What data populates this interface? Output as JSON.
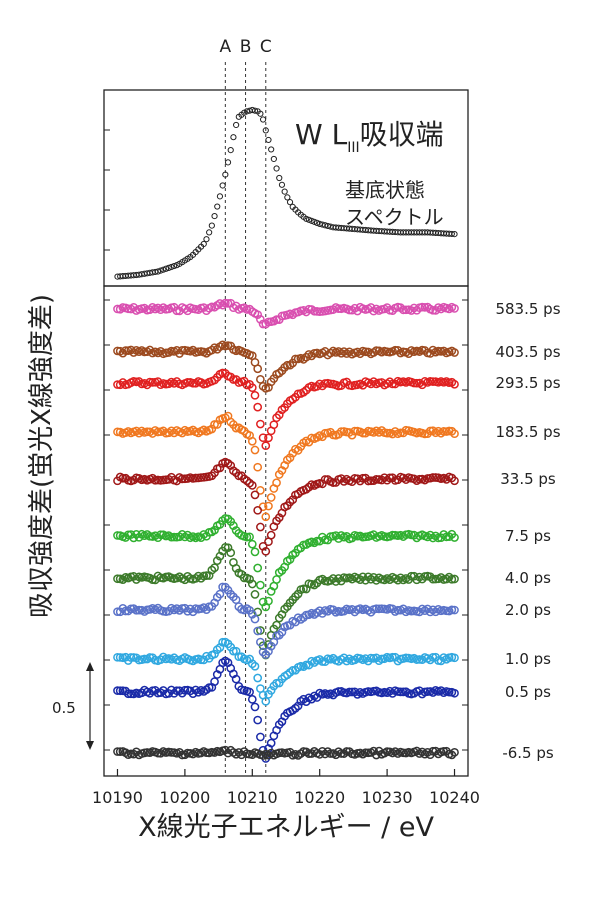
{
  "chart_data": {
    "type": "scatter",
    "xlabel": "X線光子エネルギー / eV",
    "ylabel": "吸収強度差(蛍光X線強度差)",
    "xlim": [
      10188,
      10242
    ],
    "x_ticks": [
      "10190",
      "10200",
      "10210",
      "10220",
      "10230",
      "10240"
    ],
    "markers": [
      {
        "label": "A",
        "x": 10206
      },
      {
        "label": "B",
        "x": 10209
      },
      {
        "label": "C",
        "x": 10212
      }
    ],
    "ground_state": {
      "title_main": "W L",
      "title_sub": "III",
      "title_rest": "吸収端",
      "caption_line1": "基底状態",
      "caption_line2": "スペクトル",
      "x": [
        10190,
        10193,
        10196,
        10199,
        10201,
        10203,
        10204,
        10205,
        10206,
        10207,
        10207.5,
        10208,
        10209,
        10210,
        10211,
        10211.5,
        10212,
        10213,
        10214,
        10215,
        10216,
        10217,
        10218,
        10220,
        10222,
        10225,
        10228,
        10232,
        10236,
        10240
      ],
      "y": [
        0.02,
        0.03,
        0.05,
        0.09,
        0.14,
        0.22,
        0.32,
        0.46,
        0.62,
        0.8,
        0.9,
        0.96,
        0.99,
        1.0,
        0.99,
        0.96,
        0.88,
        0.74,
        0.6,
        0.5,
        0.43,
        0.39,
        0.36,
        0.33,
        0.31,
        0.3,
        0.29,
        0.28,
        0.28,
        0.27
      ]
    },
    "scale_bar": {
      "label": "0.5",
      "value": 0.5
    },
    "series": [
      {
        "name": "583.5 ps",
        "color": "#d94fb0",
        "amp_peak": 0.07,
        "amp_dip": 0.22
      },
      {
        "name": "403.5 ps",
        "color": "#9c4a1f",
        "amp_peak": 0.1,
        "amp_dip": 0.5
      },
      {
        "name": "293.5 ps",
        "color": "#e02020",
        "amp_peak": 0.12,
        "amp_dip": 0.8
      },
      {
        "name": "183.5 ps",
        "color": "#f07820",
        "amp_peak": 0.2,
        "amp_dip": 1.1
      },
      {
        "name": "33.5 ps",
        "color": "#a01818",
        "amp_peak": 0.2,
        "amp_dip": 0.95
      },
      {
        "name": "7.5 ps",
        "color": "#30b030",
        "amp_peak": 0.22,
        "amp_dip": 0.95
      },
      {
        "name": "4.0 ps",
        "color": "#3c7a2a",
        "amp_peak": 0.4,
        "amp_dip": 1.0
      },
      {
        "name": "2.0 ps",
        "color": "#5a72c8",
        "amp_peak": 0.3,
        "amp_dip": 0.6
      },
      {
        "name": "1.0 ps",
        "color": "#30a8e0",
        "amp_peak": 0.22,
        "amp_dip": 0.55
      },
      {
        "name": "0.5 ps",
        "color": "#1a2aa8",
        "amp_peak": 0.4,
        "amp_dip": 0.85
      },
      {
        "name": "-6.5 ps",
        "color": "#333333",
        "amp_peak": 0.02,
        "amp_dip": 0.03
      }
    ]
  }
}
